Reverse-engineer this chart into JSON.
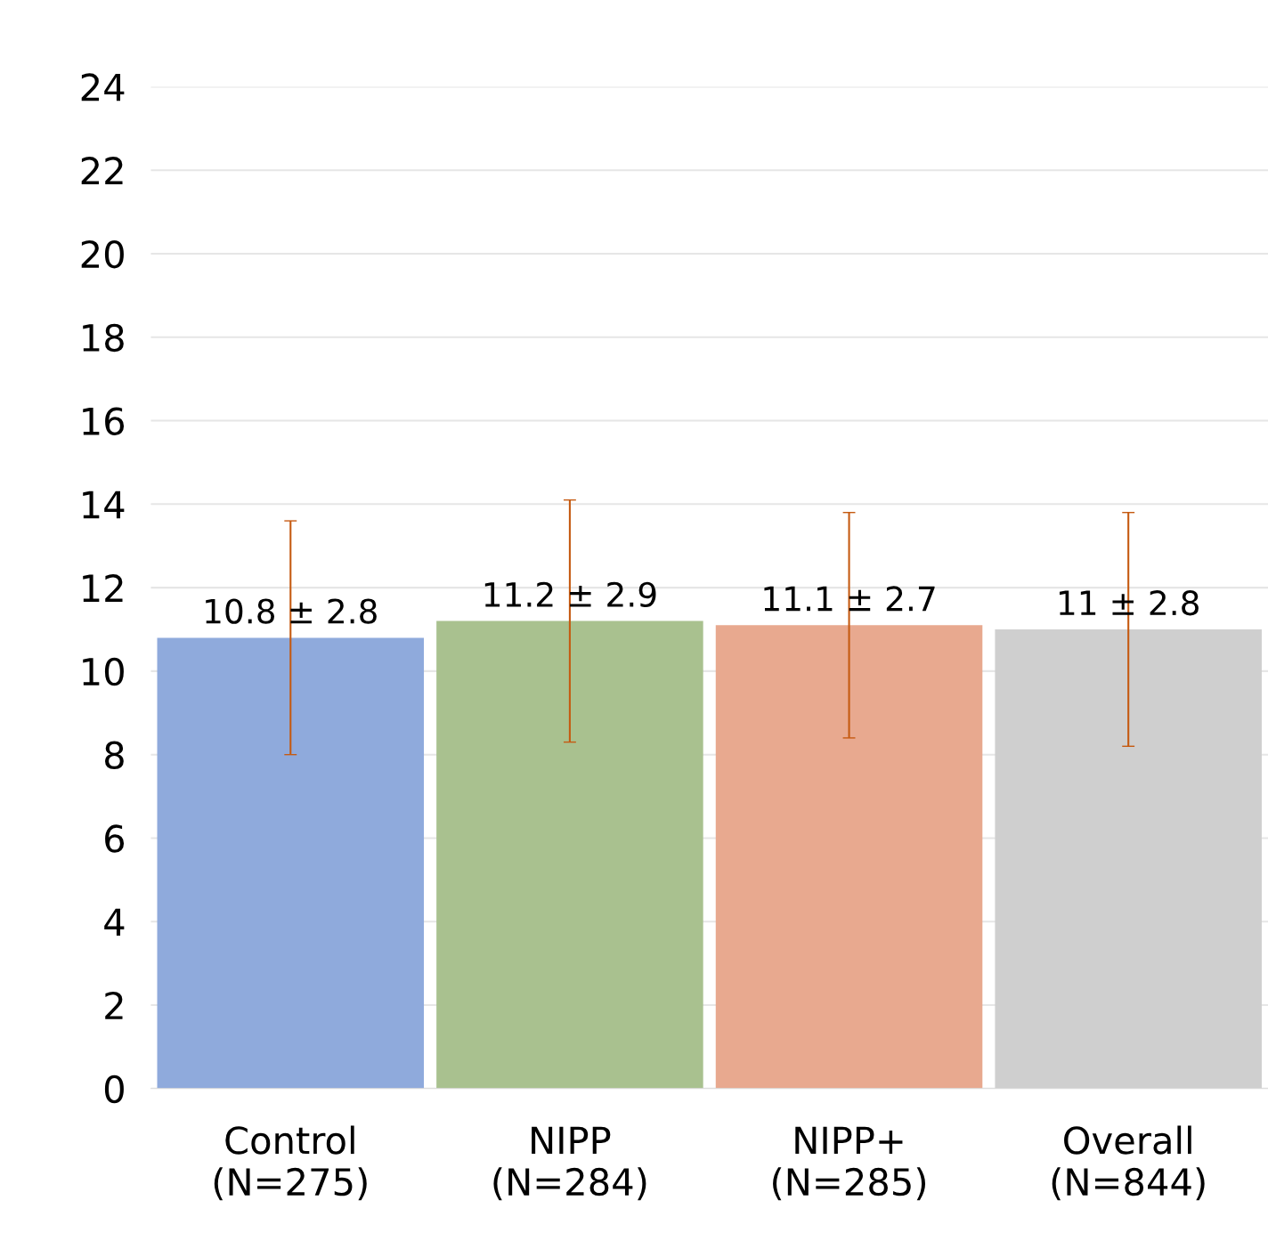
{
  "chart_data": {
    "type": "bar",
    "categories": [
      "Control\n(N=275)",
      "NIPP\n(N=284)",
      "NIPP+\n(N=285)",
      "Overall\n(N=844)"
    ],
    "values": [
      10.8,
      11.2,
      11.1,
      11
    ],
    "errors": [
      2.8,
      2.9,
      2.7,
      2.8
    ],
    "value_labels": [
      "10.8 ± 2.8",
      "11.2 ± 2.9",
      "11.1 ± 2.7",
      "11 ± 2.8"
    ],
    "colors": [
      "#8faadc",
      "#a9c18f",
      "#e8a98f",
      "#cfcfcf"
    ],
    "ylim": [
      0,
      24
    ],
    "yticks": [
      0,
      2,
      4,
      6,
      8,
      10,
      12,
      14,
      16,
      18,
      20,
      22,
      24
    ],
    "grid": "y"
  }
}
